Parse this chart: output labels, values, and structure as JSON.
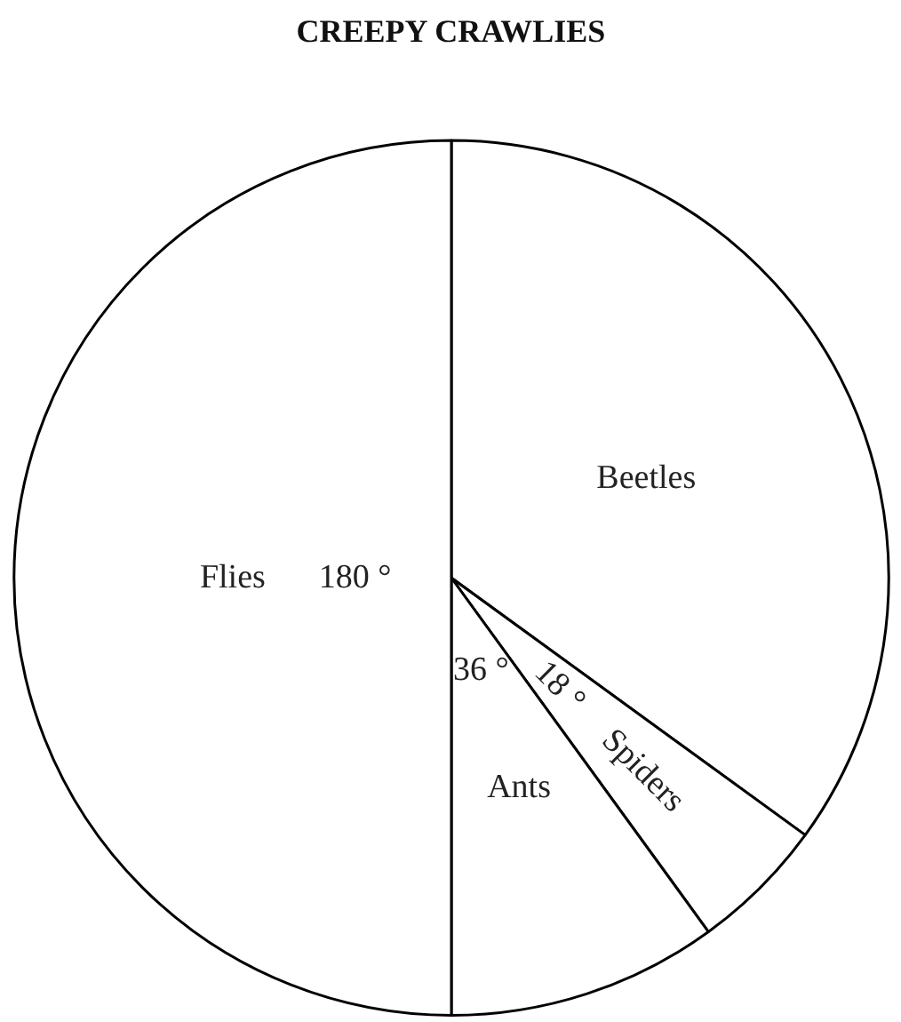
{
  "chart_data": {
    "type": "pie",
    "title": "CREEPY CRAWLIES",
    "categories": [
      "Beetles",
      "Spiders",
      "Ants",
      "Flies"
    ],
    "values": [
      126,
      18,
      36,
      180
    ],
    "colors": [
      "#ffffff",
      "#ffffff",
      "#ffffff",
      "#ffffff"
    ],
    "value_labels": [
      null,
      "18 °",
      "36 °",
      "180 °"
    ]
  }
}
